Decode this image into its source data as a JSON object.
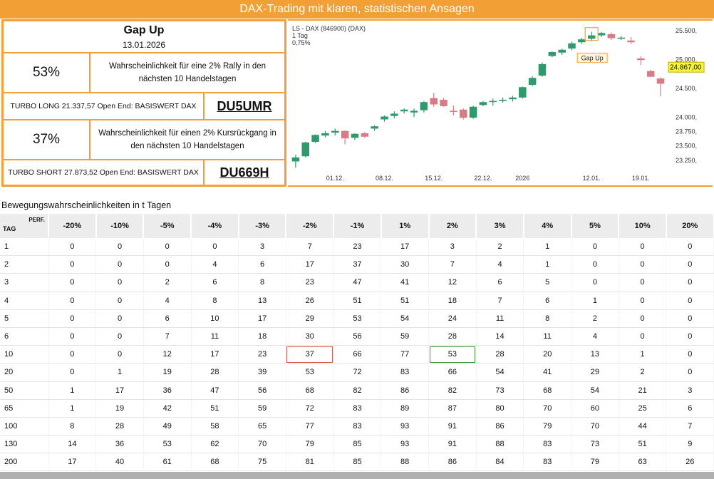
{
  "banner": {
    "title": "DAX-Trading mit klaren, statistischen Ansagen"
  },
  "panel": {
    "title": "Gap Up",
    "date": "13.01.2026",
    "up_pct": "53%",
    "up_text": "Wahrscheinlichkeit für eine 2% Rally in den nächsten 10 Handelstagen",
    "long_text": "TURBO LONG 21.337,57 Open End: BASISWERT DAX",
    "long_code": "DU5UMR",
    "down_pct": "37%",
    "down_text": "Wahrscheinlichkeit für einen 2% Kursrückgang in den nächsten 10 Handelstagen",
    "short_text": "TURBO SHORT 27.873,52 Open End: BASISWERT DAX",
    "short_code": "DU669H"
  },
  "chart_data": {
    "type": "candlestick",
    "title": "LS - DAX (846900) (DAX)",
    "interval": "1 Tag",
    "change": "0,75%",
    "price_label": "24.867,00",
    "annotation": "Gap Up",
    "ylim": [
      23100,
      25600
    ],
    "y_ticks": [
      {
        "v": 23250,
        "label": "23.250,"
      },
      {
        "v": 23500,
        "label": "23.500,"
      },
      {
        "v": 23750,
        "label": "23.750,"
      },
      {
        "v": 24000,
        "label": "24.000,"
      },
      {
        "v": 24500,
        "label": "24.500,"
      },
      {
        "v": 25000,
        "label": "25.000,"
      },
      {
        "v": 25500,
        "label": "25.500,"
      }
    ],
    "x_ticks": [
      {
        "i": 4,
        "label": "01.12."
      },
      {
        "i": 9,
        "label": "08.12."
      },
      {
        "i": 14,
        "label": "15.12."
      },
      {
        "i": 19,
        "label": "22.12."
      },
      {
        "i": 23,
        "label": "2026"
      },
      {
        "i": 30,
        "label": "12.01."
      },
      {
        "i": 35,
        "label": "19.01."
      }
    ],
    "candles": [
      {
        "o": 23230,
        "h": 23350,
        "l": 23120,
        "c": 23300
      },
      {
        "o": 23320,
        "h": 23570,
        "l": 23300,
        "c": 23560
      },
      {
        "o": 23570,
        "h": 23700,
        "l": 23550,
        "c": 23690
      },
      {
        "o": 23680,
        "h": 23760,
        "l": 23650,
        "c": 23720
      },
      {
        "o": 23730,
        "h": 23800,
        "l": 23680,
        "c": 23760
      },
      {
        "o": 23760,
        "h": 23770,
        "l": 23530,
        "c": 23630
      },
      {
        "o": 23640,
        "h": 23720,
        "l": 23600,
        "c": 23710
      },
      {
        "o": 23720,
        "h": 23740,
        "l": 23640,
        "c": 23660
      },
      {
        "o": 23800,
        "h": 23860,
        "l": 23760,
        "c": 23840
      },
      {
        "o": 23960,
        "h": 24030,
        "l": 23920,
        "c": 24010
      },
      {
        "o": 24020,
        "h": 24100,
        "l": 23980,
        "c": 24060
      },
      {
        "o": 24100,
        "h": 24150,
        "l": 24060,
        "c": 24130
      },
      {
        "o": 24080,
        "h": 24150,
        "l": 24000,
        "c": 24110
      },
      {
        "o": 24120,
        "h": 24280,
        "l": 24080,
        "c": 24260
      },
      {
        "o": 24330,
        "h": 24420,
        "l": 24180,
        "c": 24220
      },
      {
        "o": 24300,
        "h": 24330,
        "l": 24180,
        "c": 24190
      },
      {
        "o": 24110,
        "h": 24200,
        "l": 24030,
        "c": 24090
      },
      {
        "o": 24130,
        "h": 24150,
        "l": 23960,
        "c": 23990
      },
      {
        "o": 23990,
        "h": 24200,
        "l": 23970,
        "c": 24180
      },
      {
        "o": 24210,
        "h": 24280,
        "l": 24190,
        "c": 24260
      },
      {
        "o": 24270,
        "h": 24320,
        "l": 24200,
        "c": 24280
      },
      {
        "o": 24280,
        "h": 24340,
        "l": 24250,
        "c": 24300
      },
      {
        "o": 24310,
        "h": 24370,
        "l": 24270,
        "c": 24340
      },
      {
        "o": 24340,
        "h": 24530,
        "l": 24320,
        "c": 24520
      },
      {
        "o": 24560,
        "h": 24710,
        "l": 24540,
        "c": 24680
      },
      {
        "o": 24720,
        "h": 24950,
        "l": 24700,
        "c": 24920
      },
      {
        "o": 25060,
        "h": 25140,
        "l": 25040,
        "c": 25130
      },
      {
        "o": 25120,
        "h": 25190,
        "l": 25080,
        "c": 25170
      },
      {
        "o": 25190,
        "h": 25310,
        "l": 25160,
        "c": 25280
      },
      {
        "o": 25300,
        "h": 25380,
        "l": 25270,
        "c": 25350
      },
      {
        "o": 25360,
        "h": 25480,
        "l": 25320,
        "c": 25420
      },
      {
        "o": 25420,
        "h": 25480,
        "l": 25390,
        "c": 25460
      },
      {
        "o": 25440,
        "h": 25470,
        "l": 25340,
        "c": 25370
      },
      {
        "o": 25360,
        "h": 25410,
        "l": 25340,
        "c": 25380
      },
      {
        "o": 25330,
        "h": 25390,
        "l": 25270,
        "c": 25300
      },
      {
        "o": 25020,
        "h": 25060,
        "l": 24900,
        "c": 24990
      },
      {
        "o": 24800,
        "h": 24820,
        "l": 24700,
        "c": 24700
      },
      {
        "o": 24670,
        "h": 24690,
        "l": 24360,
        "c": 24580
      }
    ]
  },
  "section": {
    "title": "Bewegungswahrscheinlichkeiten in t Tagen"
  },
  "table": {
    "corner_perf": "PERF.",
    "corner_tag": "TAG",
    "headers": [
      "-20%",
      "-10%",
      "-5%",
      "-4%",
      "-3%",
      "-2%",
      "-1%",
      "1%",
      "2%",
      "3%",
      "4%",
      "5%",
      "10%",
      "20%"
    ],
    "rows": [
      {
        "day": "1",
        "vals": [
          "0",
          "0",
          "0",
          "0",
          "3",
          "7",
          "23",
          "17",
          "3",
          "2",
          "1",
          "0",
          "0",
          "0"
        ]
      },
      {
        "day": "2",
        "vals": [
          "0",
          "0",
          "0",
          "4",
          "6",
          "17",
          "37",
          "30",
          "7",
          "4",
          "1",
          "0",
          "0",
          "0"
        ]
      },
      {
        "day": "3",
        "vals": [
          "0",
          "0",
          "2",
          "6",
          "8",
          "23",
          "47",
          "41",
          "12",
          "6",
          "5",
          "0",
          "0",
          "0"
        ]
      },
      {
        "day": "4",
        "vals": [
          "0",
          "0",
          "4",
          "8",
          "13",
          "26",
          "51",
          "51",
          "18",
          "7",
          "6",
          "1",
          "0",
          "0"
        ]
      },
      {
        "day": "5",
        "vals": [
          "0",
          "0",
          "6",
          "10",
          "17",
          "29",
          "53",
          "54",
          "24",
          "11",
          "8",
          "2",
          "0",
          "0"
        ]
      },
      {
        "day": "6",
        "vals": [
          "0",
          "0",
          "7",
          "11",
          "18",
          "30",
          "56",
          "59",
          "28",
          "14",
          "11",
          "4",
          "0",
          "0"
        ]
      },
      {
        "day": "10",
        "vals": [
          "0",
          "0",
          "12",
          "17",
          "23",
          "37",
          "66",
          "77",
          "53",
          "28",
          "20",
          "13",
          "1",
          "0"
        ]
      },
      {
        "day": "20",
        "vals": [
          "0",
          "1",
          "19",
          "28",
          "39",
          "53",
          "72",
          "83",
          "66",
          "54",
          "41",
          "29",
          "2",
          "0"
        ]
      },
      {
        "day": "50",
        "vals": [
          "1",
          "17",
          "36",
          "47",
          "56",
          "68",
          "82",
          "86",
          "82",
          "73",
          "68",
          "54",
          "21",
          "3"
        ]
      },
      {
        "day": "65",
        "vals": [
          "1",
          "19",
          "42",
          "51",
          "59",
          "72",
          "83",
          "89",
          "87",
          "80",
          "70",
          "60",
          "25",
          "6"
        ]
      },
      {
        "day": "100",
        "vals": [
          "8",
          "28",
          "49",
          "58",
          "65",
          "77",
          "83",
          "93",
          "91",
          "86",
          "79",
          "70",
          "44",
          "7"
        ]
      },
      {
        "day": "130",
        "vals": [
          "14",
          "36",
          "53",
          "62",
          "70",
          "79",
          "85",
          "93",
          "91",
          "88",
          "83",
          "73",
          "51",
          "9"
        ]
      },
      {
        "day": "200",
        "vals": [
          "17",
          "40",
          "61",
          "68",
          "75",
          "81",
          "85",
          "88",
          "86",
          "84",
          "83",
          "79",
          "63",
          "26"
        ]
      }
    ]
  },
  "colors": {
    "accent": "#f2a036",
    "up": "#2e9a6e",
    "down": "#d97a86"
  }
}
